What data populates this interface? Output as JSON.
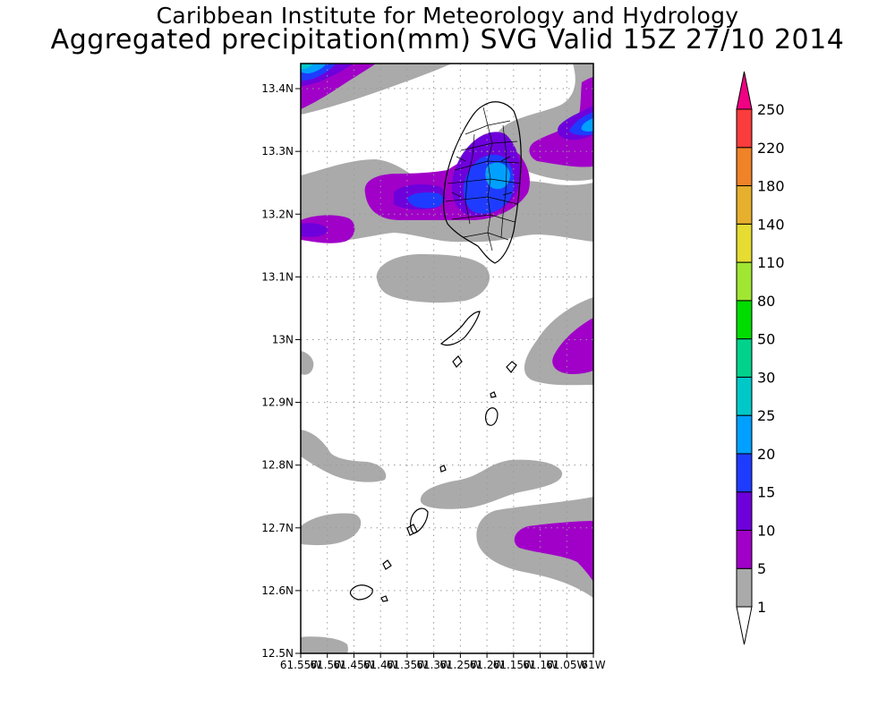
{
  "header": {
    "title": "Caribbean Institute for Meteorology and Hydrology",
    "subtitle": "Aggregated precipitation(mm) SVG Valid 15Z 27/10 2014"
  },
  "map": {
    "lat_range": [
      12.5,
      13.44
    ],
    "lon_range": [
      -61.55,
      -61.0
    ],
    "lat_ticks": [
      {
        "value": 12.5,
        "label": "12.5N"
      },
      {
        "value": 12.6,
        "label": "12.6N"
      },
      {
        "value": 12.7,
        "label": "12.7N"
      },
      {
        "value": 12.8,
        "label": "12.8N"
      },
      {
        "value": 12.9,
        "label": "12.9N"
      },
      {
        "value": 13.0,
        "label": "13N"
      },
      {
        "value": 13.1,
        "label": "13.1N"
      },
      {
        "value": 13.2,
        "label": "13.2N"
      },
      {
        "value": 13.3,
        "label": "13.3N"
      },
      {
        "value": 13.4,
        "label": "13.4N"
      }
    ],
    "lon_ticks": [
      {
        "value": -61.55,
        "label": "61.55W"
      },
      {
        "value": -61.5,
        "label": "61.5W"
      },
      {
        "value": -61.45,
        "label": "61.45W"
      },
      {
        "value": -61.4,
        "label": "61.4W"
      },
      {
        "value": -61.35,
        "label": "61.35W"
      },
      {
        "value": -61.3,
        "label": "61.3W"
      },
      {
        "value": -61.25,
        "label": "61.25W"
      },
      {
        "value": -61.2,
        "label": "61.2W"
      },
      {
        "value": -61.15,
        "label": "61.15W"
      },
      {
        "value": -61.1,
        "label": "61.1W"
      },
      {
        "value": -61.05,
        "label": "61.05W"
      },
      {
        "value": -61.0,
        "label": "61W"
      }
    ],
    "grid": true
  },
  "colorbar": {
    "levels": [
      "1",
      "5",
      "10",
      "15",
      "20",
      "25",
      "30",
      "50",
      "80",
      "110",
      "140",
      "180",
      "220",
      "250"
    ],
    "colors": [
      "#ffffff",
      "#aaaaaa",
      "#a000c8",
      "#6e00dc",
      "#1e3cff",
      "#00a0ff",
      "#00c8c8",
      "#00d28c",
      "#00dc00",
      "#a0e632",
      "#e6dc32",
      "#e6af2d",
      "#f08228",
      "#fa3c3c",
      "#f00082"
    ]
  },
  "colors": {
    "accent": "#000000",
    "grey": "#aaaaaa",
    "purple": "#a000c8",
    "violet": "#6e00dc",
    "blue": "#1e3cff",
    "lightblue": "#00a0ff",
    "cyan": "#00c8c8"
  }
}
